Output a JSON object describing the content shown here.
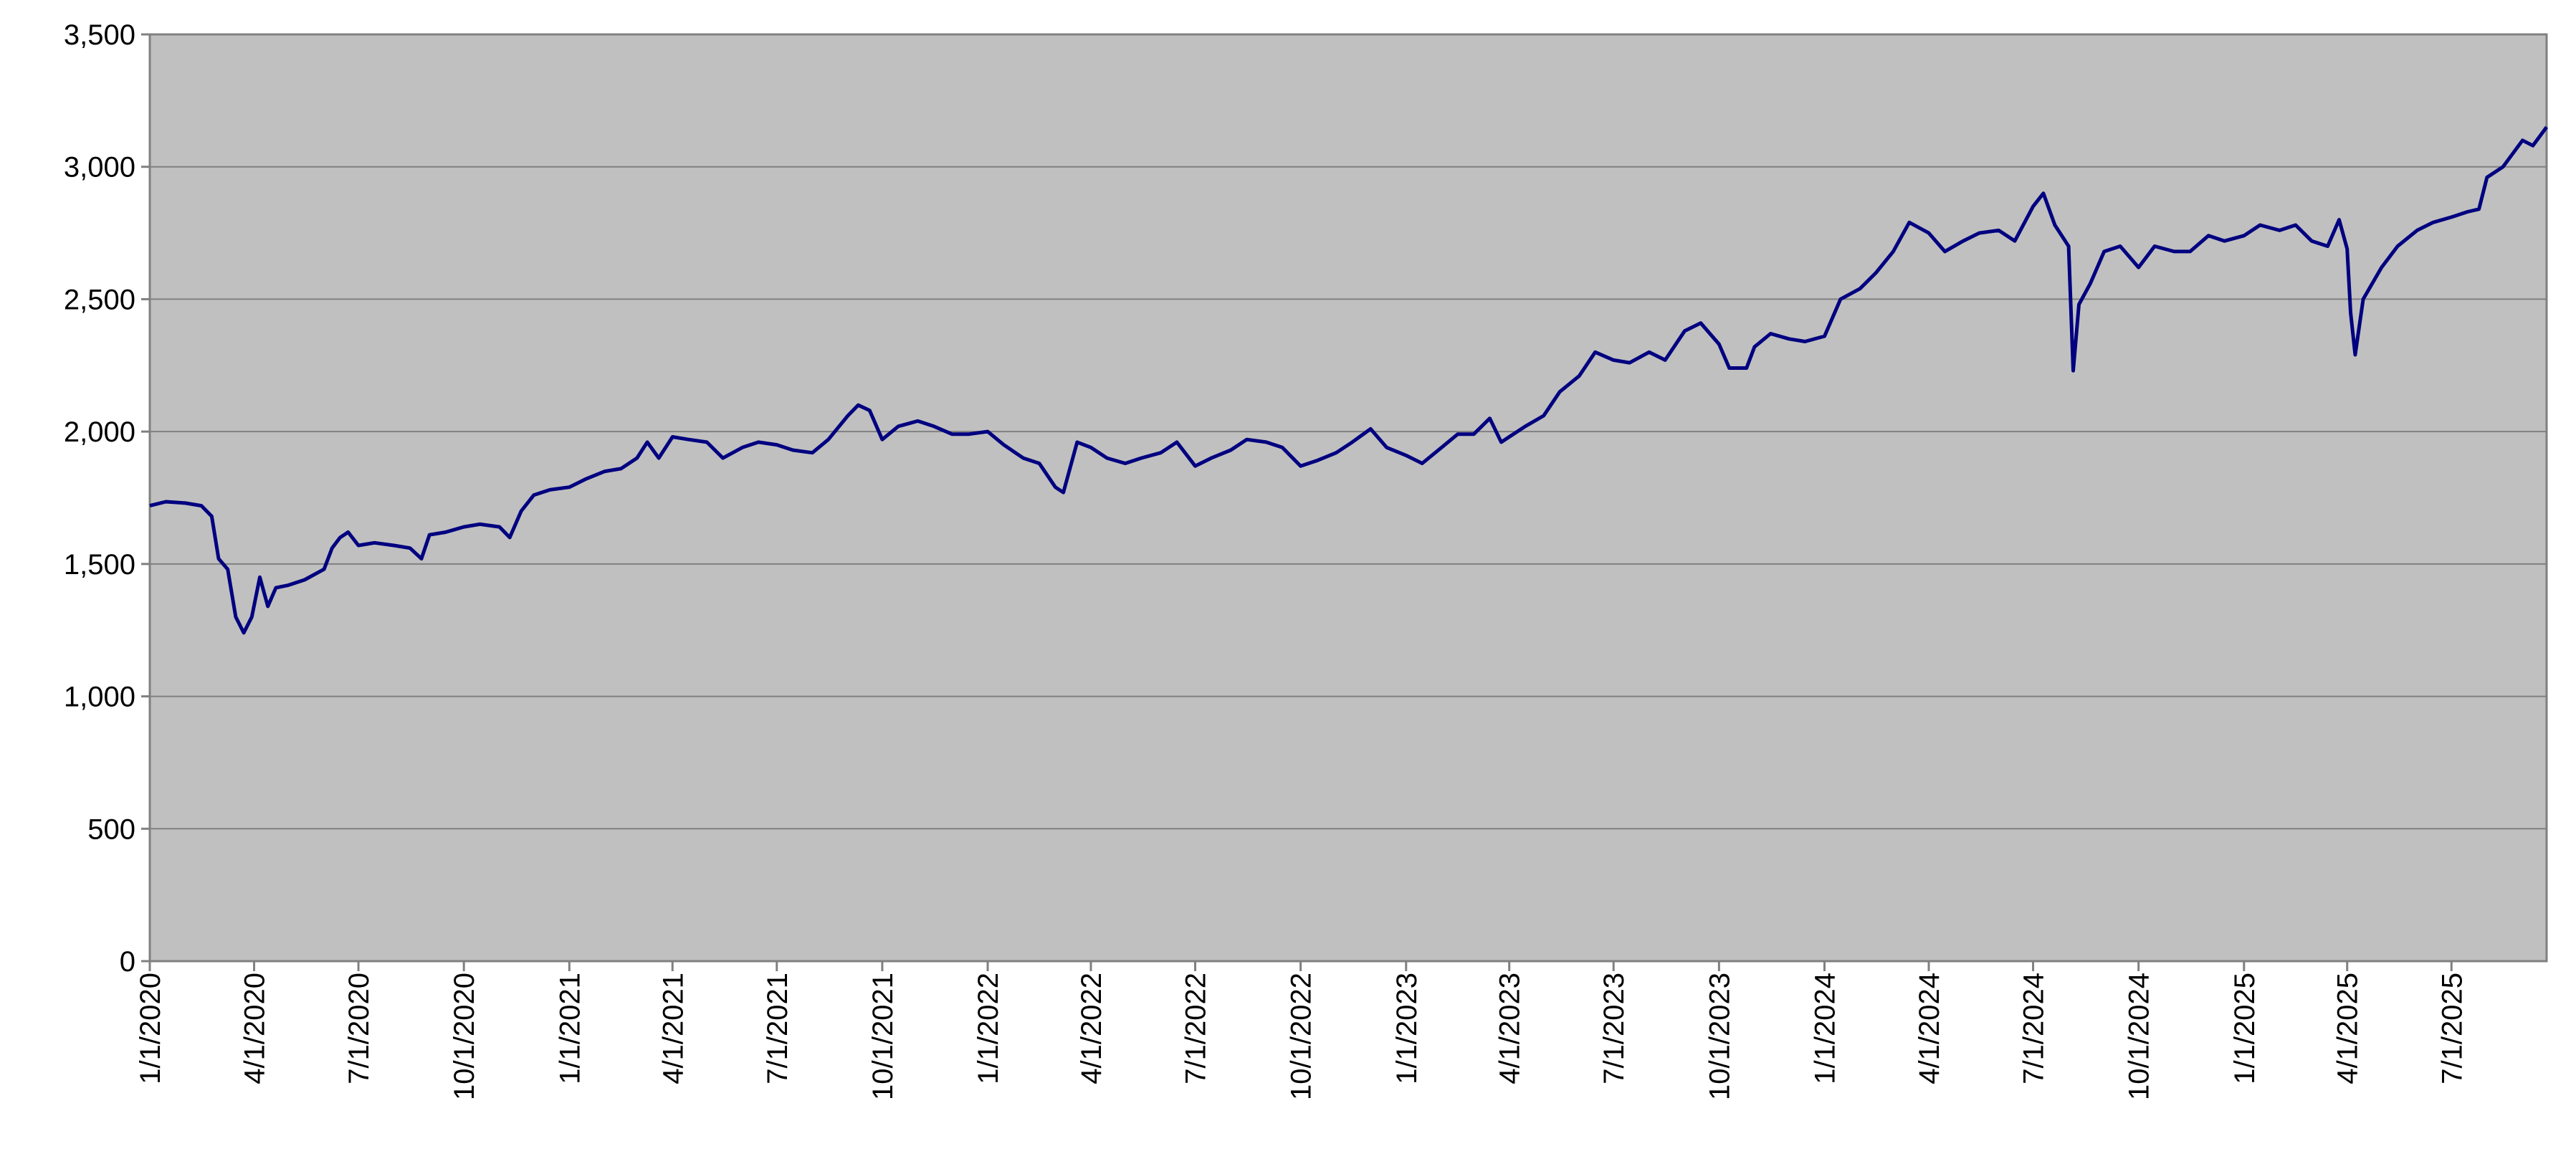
{
  "chart_data": {
    "type": "line",
    "x": [
      "1/1/2020",
      "1/15/2020",
      "2/1/2020",
      "2/15/2020",
      "2/24/2020",
      "3/1/2020",
      "3/9/2020",
      "3/16/2020",
      "3/23/2020",
      "3/30/2020",
      "4/6/2020",
      "4/13/2020",
      "4/20/2020",
      "5/1/2020",
      "5/15/2020",
      "6/1/2020",
      "6/8/2020",
      "6/15/2020",
      "6/22/2020",
      "7/1/2020",
      "7/15/2020",
      "8/1/2020",
      "8/15/2020",
      "8/25/2020",
      "9/1/2020",
      "9/15/2020",
      "10/1/2020",
      "10/15/2020",
      "11/1/2020",
      "11/10/2020",
      "11/20/2020",
      "12/1/2020",
      "12/15/2020",
      "1/1/2021",
      "1/15/2021",
      "2/1/2021",
      "2/15/2021",
      "3/1/2021",
      "3/10/2021",
      "3/20/2021",
      "4/1/2021",
      "4/15/2021",
      "5/1/2021",
      "5/15/2021",
      "6/1/2021",
      "6/15/2021",
      "7/1/2021",
      "7/15/2021",
      "8/1/2021",
      "8/15/2021",
      "9/1/2021",
      "9/10/2021",
      "9/20/2021",
      "10/1/2021",
      "10/15/2021",
      "11/1/2021",
      "11/15/2021",
      "12/1/2021",
      "12/15/2021",
      "1/1/2022",
      "1/15/2022",
      "2/1/2022",
      "2/15/2022",
      "3/1/2022",
      "3/8/2022",
      "3/20/2022",
      "4/1/2022",
      "4/15/2022",
      "5/1/2022",
      "5/15/2022",
      "6/1/2022",
      "6/15/2022",
      "7/1/2022",
      "7/15/2022",
      "8/1/2022",
      "8/15/2022",
      "9/1/2022",
      "9/15/2022",
      "10/1/2022",
      "10/15/2022",
      "11/1/2022",
      "11/15/2022",
      "12/1/2022",
      "12/15/2022",
      "1/1/2023",
      "1/15/2023",
      "2/1/2023",
      "2/15/2023",
      "3/1/2023",
      "3/15/2023",
      "3/25/2023",
      "4/1/2023",
      "4/15/2023",
      "5/1/2023",
      "5/15/2023",
      "6/1/2023",
      "6/15/2023",
      "7/1/2023",
      "7/15/2023",
      "8/1/2023",
      "8/15/2023",
      "9/1/2023",
      "9/15/2023",
      "10/1/2023",
      "10/10/2023",
      "10/25/2023",
      "11/1/2023",
      "11/15/2023",
      "12/1/2023",
      "12/15/2023",
      "1/1/2024",
      "1/15/2024",
      "2/1/2024",
      "2/15/2024",
      "3/1/2024",
      "3/15/2024",
      "4/1/2024",
      "4/15/2024",
      "5/1/2024",
      "5/15/2024",
      "6/1/2024",
      "6/15/2024",
      "7/1/2024",
      "7/10/2024",
      "7/20/2024",
      "8/1/2024",
      "8/5/2024",
      "8/10/2024",
      "8/20/2024",
      "9/1/2024",
      "9/15/2024",
      "10/1/2024",
      "10/15/2024",
      "11/1/2024",
      "11/15/2024",
      "12/1/2024",
      "12/15/2024",
      "1/1/2025",
      "1/15/2025",
      "2/1/2025",
      "2/15/2025",
      "3/1/2025",
      "3/15/2025",
      "3/25/2025",
      "4/1/2025",
      "4/4/2025",
      "4/8/2025",
      "4/15/2025",
      "5/1/2025",
      "5/15/2025",
      "6/1/2025",
      "6/15/2025",
      "7/1/2025",
      "7/15/2025",
      "7/25/2025",
      "8/1/2025",
      "8/15/2025",
      "9/1/2025",
      "9/10/2025",
      "9/22/2025"
    ],
    "series": [
      {
        "color": "#000080",
        "values": [
          1720,
          1735,
          1730,
          1720,
          1680,
          1520,
          1480,
          1300,
          1240,
          1300,
          1450,
          1340,
          1410,
          1420,
          1440,
          1480,
          1560,
          1600,
          1620,
          1570,
          1580,
          1570,
          1560,
          1520,
          1610,
          1620,
          1640,
          1650,
          1640,
          1600,
          1700,
          1760,
          1780,
          1790,
          1820,
          1850,
          1860,
          1900,
          1960,
          1900,
          1980,
          1970,
          1960,
          1900,
          1940,
          1960,
          1950,
          1930,
          1920,
          1970,
          2060,
          2100,
          2080,
          1970,
          2020,
          2040,
          2020,
          1990,
          1990,
          2000,
          1950,
          1900,
          1880,
          1790,
          1770,
          1960,
          1940,
          1900,
          1880,
          1900,
          1920,
          1960,
          1870,
          1900,
          1930,
          1970,
          1960,
          1940,
          1870,
          1890,
          1920,
          1960,
          2010,
          1940,
          1910,
          1880,
          1940,
          1990,
          1990,
          2050,
          1960,
          1980,
          2020,
          2060,
          2150,
          2210,
          2300,
          2270,
          2260,
          2300,
          2270,
          2380,
          2410,
          2330,
          2240,
          2240,
          2320,
          2370,
          2350,
          2340,
          2360,
          2500,
          2540,
          2600,
          2680,
          2790,
          2750,
          2680,
          2720,
          2750,
          2760,
          2720,
          2850,
          2900,
          2780,
          2700,
          2230,
          2480,
          2560,
          2680,
          2700,
          2620,
          2700,
          2680,
          2680,
          2740,
          2720,
          2740,
          2780,
          2760,
          2780,
          2720,
          2700,
          2800,
          2690,
          2450,
          2290,
          2500,
          2620,
          2700,
          2760,
          2790,
          2810,
          2830,
          2840,
          2960,
          3000,
          3100,
          3080,
          3150
        ]
      }
    ],
    "xlim": [
      "1/1/2020",
      "9/22/2025"
    ],
    "xticks": [
      "1/1/2020",
      "4/1/2020",
      "7/1/2020",
      "10/1/2020",
      "1/1/2021",
      "4/1/2021",
      "7/1/2021",
      "10/1/2021",
      "1/1/2022",
      "4/1/2022",
      "7/1/2022",
      "10/1/2022",
      "1/1/2023",
      "4/1/2023",
      "7/1/2023",
      "10/1/2023",
      "1/1/2024",
      "4/1/2024",
      "7/1/2024",
      "10/1/2024",
      "1/1/2025",
      "4/1/2025",
      "7/1/2025"
    ],
    "ylim": [
      0,
      3500
    ],
    "yticks": [
      0,
      500,
      {
        "value": 1000,
        "label": "1,000"
      },
      {
        "value": 1500,
        "label": "1,500"
      },
      {
        "value": 2000,
        "label": "2,000"
      },
      {
        "value": 2500,
        "label": "2,500"
      },
      {
        "value": 3000,
        "label": "3,000"
      },
      {
        "value": 3500,
        "label": "3,500"
      }
    ],
    "grid": true
  }
}
